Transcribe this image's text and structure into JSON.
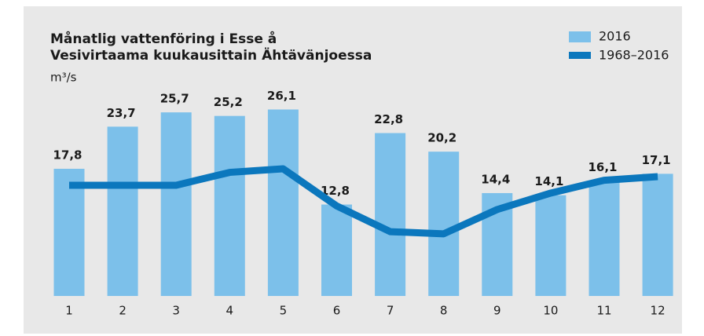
{
  "chart_data": {
    "type": "bar_line",
    "title": [
      "Månatlig vattenföring i Esse å",
      "Vesivirtaama kuukausittain Ähtävänjoessa"
    ],
    "y_label": "m³/s",
    "categories": [
      "1",
      "2",
      "3",
      "4",
      "5",
      "6",
      "7",
      "8",
      "9",
      "10",
      "11",
      "12"
    ],
    "series": [
      {
        "name": "2016",
        "color": "#7cc0ea",
        "type": "bar",
        "values": [
          17.8,
          23.7,
          25.7,
          25.2,
          26.1,
          12.8,
          22.8,
          20.2,
          14.4,
          14.1,
          16.1,
          17.1
        ],
        "value_labels": [
          "17,8",
          "23,7",
          "25,7",
          "25,2",
          "26,1",
          "12,8",
          "22,8",
          "20,2",
          "14,4",
          "14,1",
          "16,1",
          "17,1"
        ]
      },
      {
        "name": "1968–2016",
        "color": "#0b77bd",
        "type": "line",
        "values": [
          15.5,
          15.5,
          15.5,
          17.3,
          17.8,
          12.6,
          9.0,
          8.7,
          12.1,
          14.4,
          16.2,
          16.7
        ]
      }
    ],
    "ylim": [
      0,
      30
    ]
  }
}
